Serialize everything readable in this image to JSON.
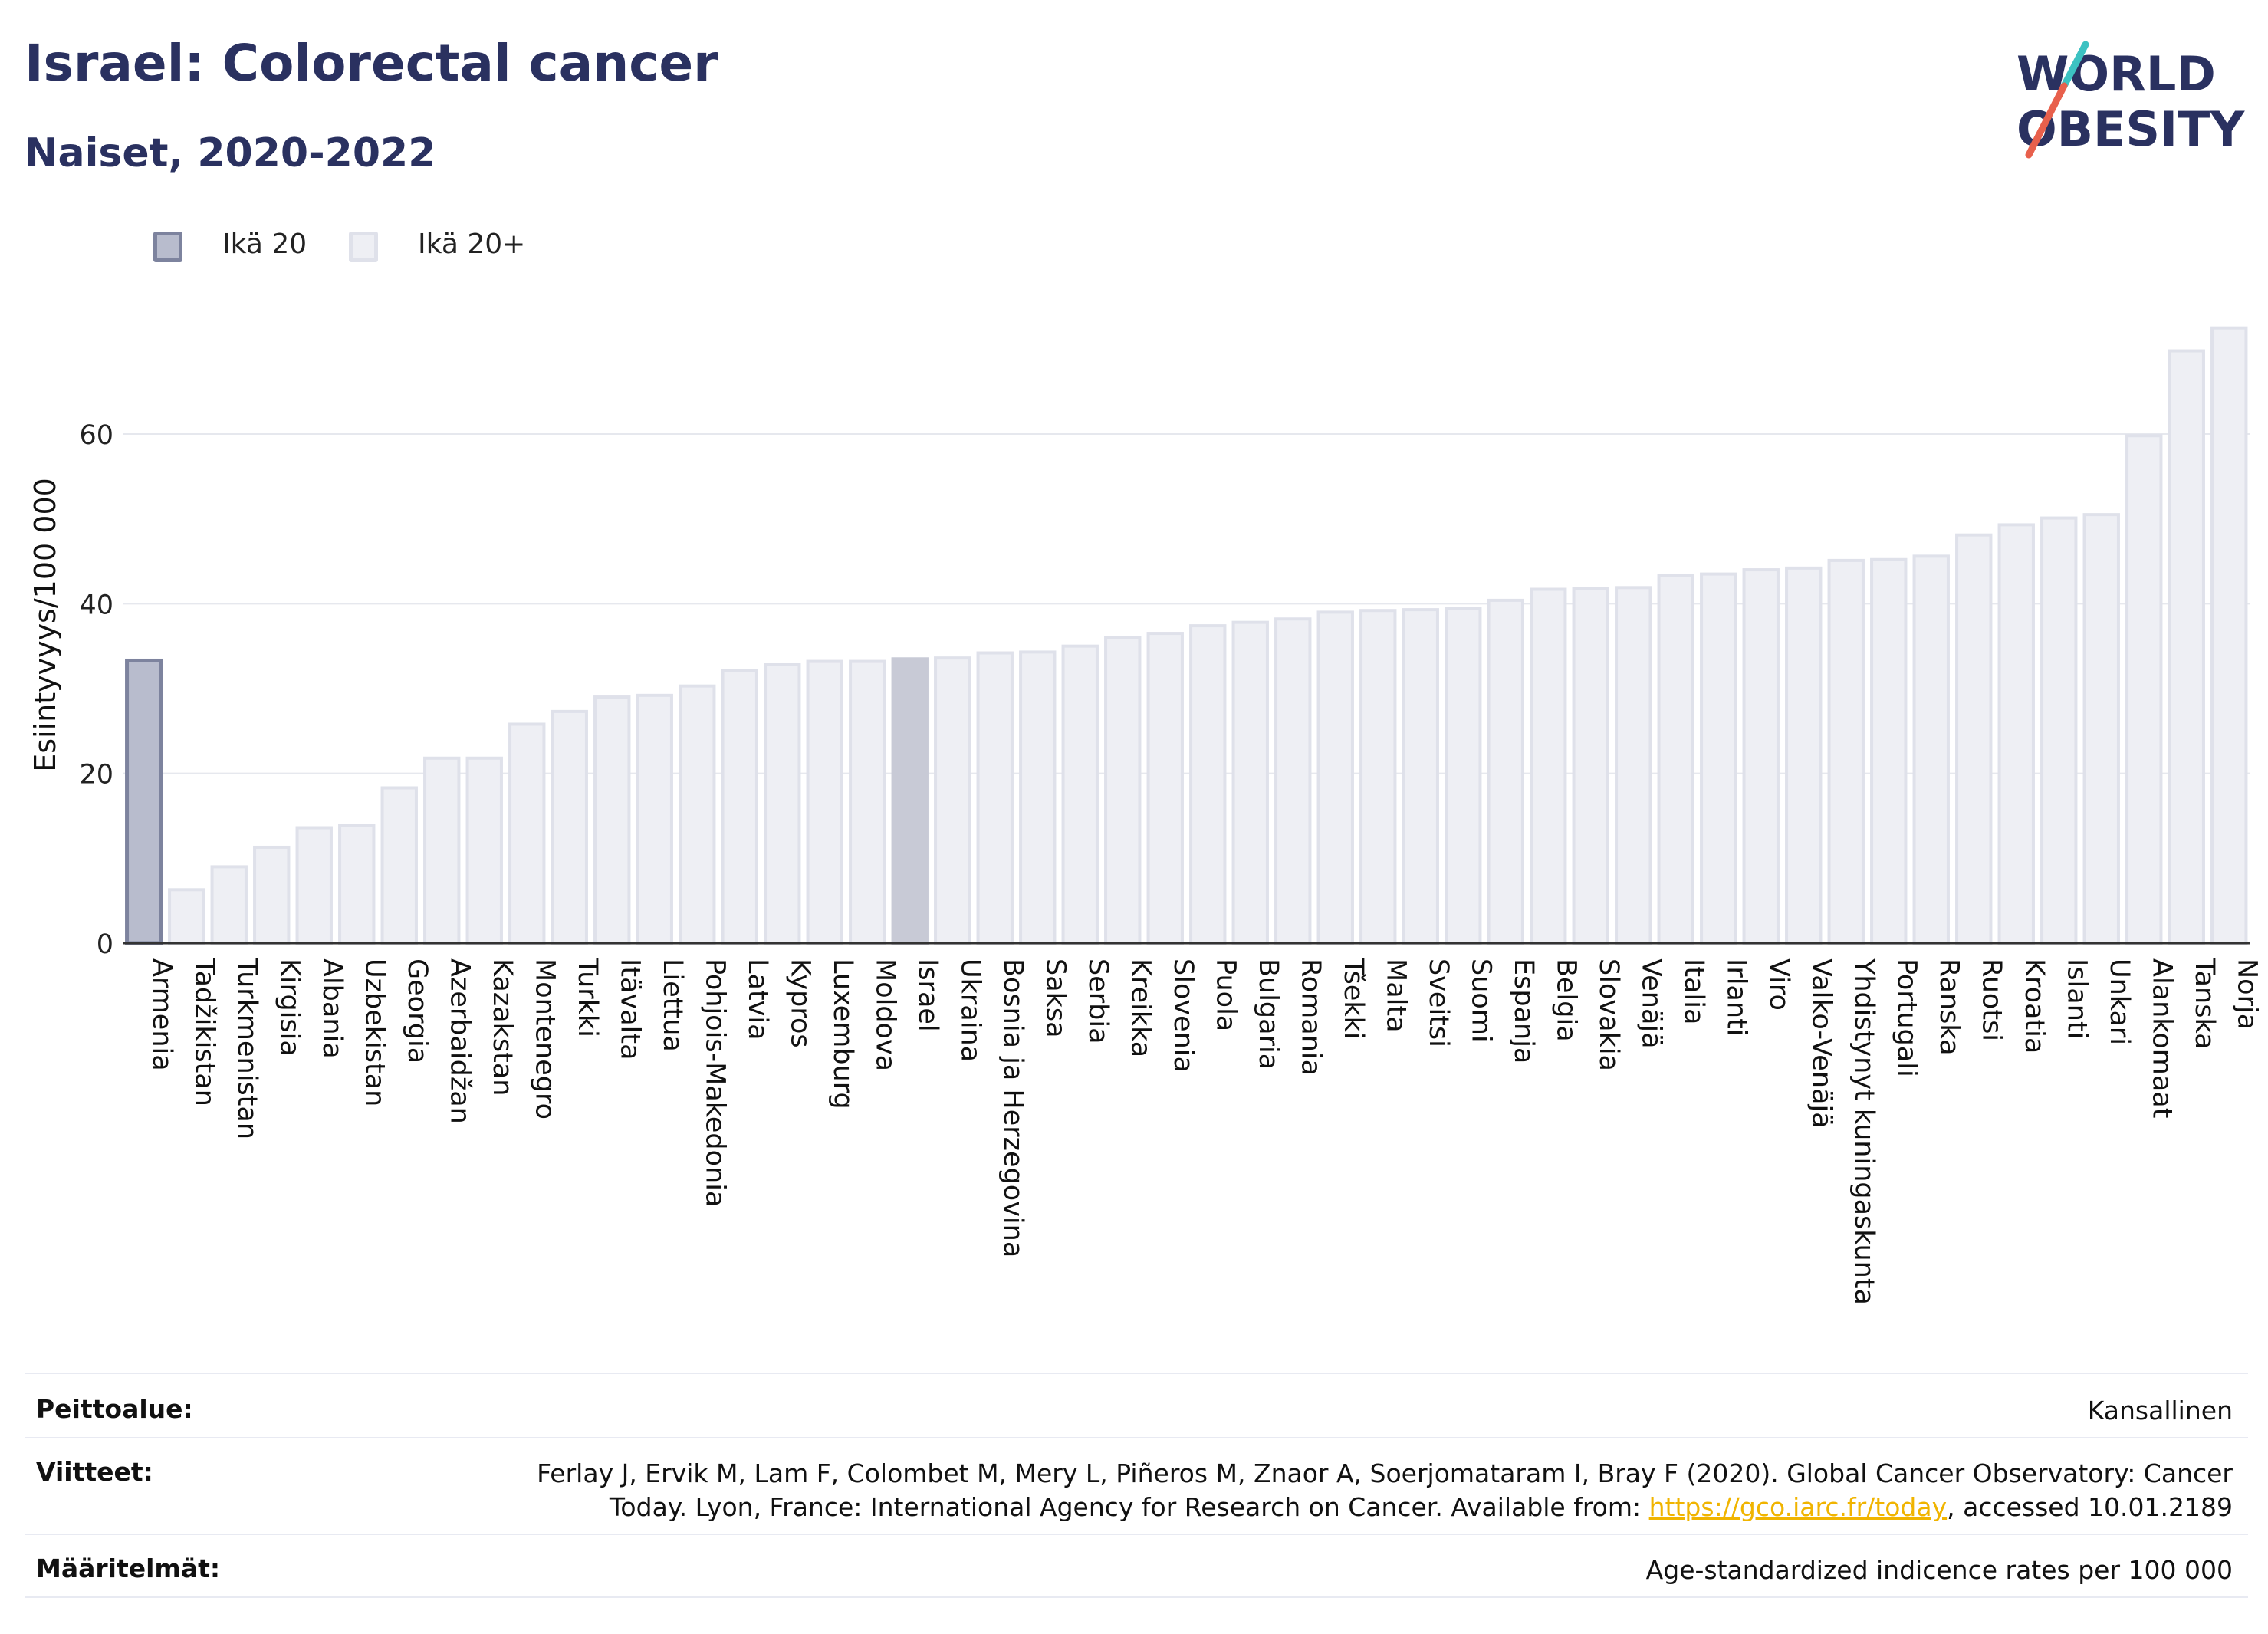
{
  "header": {
    "title": "Israel: Colorectal cancer",
    "subtitle": "Naiset, 2020-2022"
  },
  "logo": {
    "line1": "WORLD",
    "line2": "OBESITY",
    "colors": {
      "text": "#2a3160",
      "slash_teal": "#3cc2c2",
      "slash_red": "#e8604c"
    }
  },
  "legend": {
    "items": [
      {
        "label": "Ikä 20",
        "color": "#b8bccd",
        "border": "#7d839e"
      },
      {
        "label": "Ikä 20+",
        "color": "#eeeff4",
        "border": "#dfe1ea"
      }
    ]
  },
  "chart_data": {
    "type": "bar",
    "ylabel": "Esiintyvyys/100 000",
    "xlabel": "",
    "ylim": [
      0,
      75
    ],
    "yticks": [
      0,
      20,
      40,
      60
    ],
    "grid": true,
    "legend_position": "top-left",
    "highlight": "Israel",
    "categories": [
      "Armenia",
      "Tadžikistan",
      "Turkmenistan",
      "Kirgisia",
      "Albania",
      "Uzbekistan",
      "Georgia",
      "Azerbaidžan",
      "Kazakstan",
      "Montenegro",
      "Turkki",
      "Itävalta",
      "Liettua",
      "Pohjois-Makedonia",
      "Latvia",
      "Kypros",
      "Luxemburg",
      "Moldova",
      "Israel",
      "Ukraina",
      "Bosnia ja Herzegovina",
      "Saksa",
      "Serbia",
      "Kreikka",
      "Slovenia",
      "Puola",
      "Bulgaria",
      "Romania",
      "Tšekki",
      "Malta",
      "Sveitsi",
      "Suomi",
      "Espanja",
      "Belgia",
      "Slovakia",
      "Venäjä",
      "Italia",
      "Irlanti",
      "Viro",
      "Valko-Venäjä",
      "Yhdistynyt kuningaskunta",
      "Portugali",
      "Ranska",
      "Ruotsi",
      "Kroatia",
      "Islanti",
      "Unkari",
      "Alankomaat",
      "Tanska",
      "Norja"
    ],
    "series": [
      {
        "name": "Ikä 20+",
        "values": [
          33.3,
          6.3,
          9.0,
          11.3,
          13.6,
          13.9,
          18.3,
          21.8,
          21.8,
          25.8,
          27.3,
          29.0,
          29.2,
          30.3,
          32.1,
          32.8,
          33.2,
          33.2,
          33.5,
          33.6,
          34.2,
          34.3,
          35.0,
          36.0,
          36.5,
          37.4,
          37.8,
          38.2,
          39.0,
          39.2,
          39.3,
          39.4,
          40.4,
          41.7,
          41.8,
          41.9,
          43.3,
          43.5,
          44.0,
          44.2,
          45.1,
          45.2,
          45.6,
          48.1,
          49.3,
          50.1,
          50.5,
          59.8,
          69.8,
          72.5
        ]
      }
    ],
    "colors": {
      "default_fill": "#eeeff4",
      "default_stroke": "#dfe1ea",
      "first_fill": "#b8bccd",
      "first_stroke": "#7d839e",
      "highlight_fill": "#c8cad6",
      "highlight_stroke": "#c8cad6",
      "grid": "#e6e8ee",
      "axis": "#333333"
    }
  },
  "metadata_table": {
    "rows": [
      {
        "key": "Peittoalue:",
        "value": "Kansallinen"
      },
      {
        "key": "Viitteet:",
        "value_line1": "Ferlay J, Ervik M, Lam F, Colombet M, Mery L, Piñeros M, Znaor A, Soerjomataram I, Bray F (2020). Global Cancer Observatory: Cancer",
        "value_line2_pre": "Today. Lyon, France: International Agency for Research on Cancer. Available from: ",
        "link": "https://gco.iarc.fr/today",
        "value_line2_post": ", accessed 10.01.2189"
      },
      {
        "key": "Määritelmät:",
        "value": "Age-standardized indicence rates per 100 000"
      }
    ]
  }
}
